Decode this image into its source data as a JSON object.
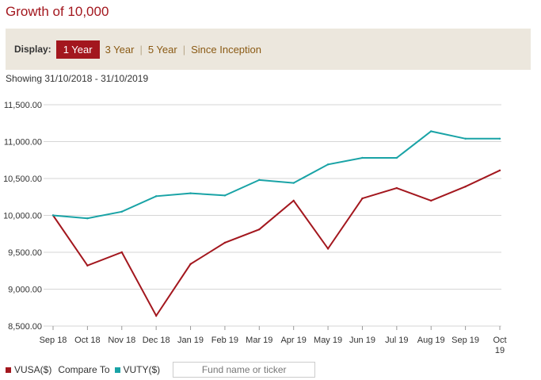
{
  "header": {
    "title": "Growth of 10,000"
  },
  "display": {
    "label": "Display:",
    "options": [
      "1 Year",
      "3 Year",
      "5 Year",
      "Since Inception"
    ],
    "separator": "|",
    "selected": "1 Year"
  },
  "showing": "Showing 31/10/2018 - 31/10/2019",
  "legend": {
    "series1": "VUSA($)",
    "compare_label": "Compare To",
    "series2": "VUTY($)",
    "search_placeholder": "Fund name or ticker"
  },
  "colors": {
    "accent": "#a3171e",
    "vusa": "#a3171e",
    "vuty": "#19a3a6",
    "grid": "#d6d6d6"
  },
  "chart_data": {
    "type": "line",
    "x": [
      "Sep 18",
      "Oct 18",
      "Nov 18",
      "Dec 18",
      "Jan 19",
      "Feb 19",
      "Mar 19",
      "Apr 19",
      "May 19",
      "Jun 19",
      "Jul 19",
      "Aug 19",
      "Sep 19",
      "Oct 19"
    ],
    "series": [
      {
        "name": "VUSA($)",
        "color": "#a3171e",
        "values": [
          10000,
          9320,
          9500,
          8640,
          9340,
          9630,
          9810,
          10200,
          9550,
          10230,
          10370,
          10200,
          10390,
          10610
        ]
      },
      {
        "name": "VUTY($)",
        "color": "#19a3a6",
        "values": [
          10000,
          9960,
          10050,
          10260,
          10300,
          10270,
          10480,
          10440,
          10690,
          10780,
          10780,
          11140,
          11040,
          11040
        ]
      }
    ],
    "yticks": [
      "8,500.00",
      "9,000.00",
      "9,500.00",
      "10,000.00",
      "10,500.00",
      "11,000.00",
      "11,500.00"
    ],
    "ylim": [
      8500,
      11500
    ],
    "grid": true,
    "legend_position": "bottom-left"
  }
}
